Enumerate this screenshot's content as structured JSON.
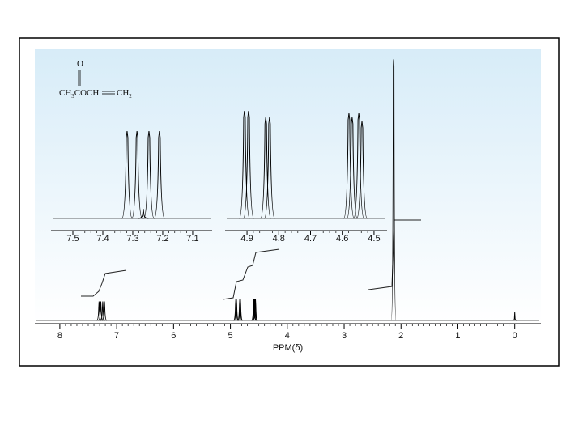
{
  "chart_data": [
    {
      "type": "spectrum",
      "xlabel": "PPM(δ)",
      "xlim": [
        8.44,
        -0.46
      ],
      "xticks": [
        8,
        7,
        6,
        5,
        4,
        3,
        2,
        1,
        0
      ],
      "ylim": [
        0,
        100
      ],
      "series": [
        {
          "name": "peaks",
          "color": "#000000",
          "x": [
            7.31,
            7.28,
            7.245,
            7.215,
            4.905,
            4.895,
            4.835,
            4.825,
            4.59,
            4.58,
            4.57,
            4.56,
            2.13,
            0
          ],
          "values": [
            7,
            7,
            7,
            7,
            8,
            8,
            8,
            8,
            8,
            8,
            8,
            8,
            96,
            3
          ]
        }
      ]
    },
    {
      "type": "spectrum",
      "xlim": [
        7.573,
        7.035
      ],
      "xticks": [
        7.5,
        7.4,
        7.3,
        7.2,
        7.1
      ],
      "ylim": [
        0,
        140
      ],
      "series": [
        {
          "name": "inset-1",
          "color": "#000000",
          "x": [
            7.319,
            7.286,
            7.265,
            7.246,
            7.211
          ],
          "values": [
            108,
            108,
            12,
            108,
            108
          ]
        }
      ]
    },
    {
      "type": "spectrum",
      "xlim": [
        4.969,
        4.459
      ],
      "xticks": [
        4.9,
        4.8,
        4.7,
        4.6,
        4.5
      ],
      "ylim": [
        0,
        140
      ],
      "series": [
        {
          "name": "inset-2",
          "color": "#000000",
          "x": [
            4.908,
            4.895,
            4.841,
            4.829,
            4.579,
            4.569,
            4.548,
            4.538
          ],
          "values": [
            133,
            133,
            125,
            125,
            130,
            125,
            130,
            120
          ]
        }
      ]
    }
  ],
  "structure": {
    "oxygen": "O",
    "parts": [
      "CH",
      "3",
      "COCH",
      "CH",
      "2"
    ]
  }
}
